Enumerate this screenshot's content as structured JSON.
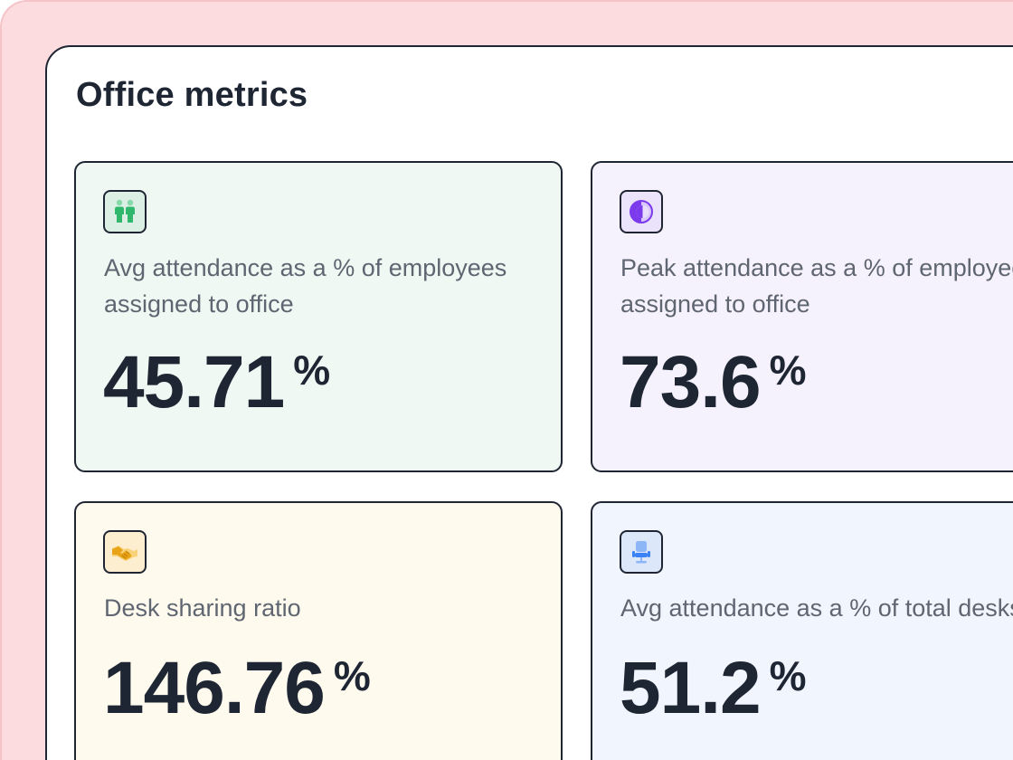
{
  "title": "Office metrics",
  "cards": [
    {
      "icon": "people-icon",
      "label": "Avg attendance as a % of employees assigned to office",
      "value": "45.71",
      "unit": "%",
      "background": "#eff8f3",
      "accent": "#2fb86b"
    },
    {
      "icon": "half-circle-icon",
      "label": "Peak attendance as a % of employees assigned to office",
      "value": "73.6",
      "unit": "%",
      "background": "#f5f1fd",
      "accent": "#7c3aed"
    },
    {
      "icon": "handshake-icon",
      "label": "Desk sharing ratio",
      "value": "146.76",
      "unit": "%",
      "background": "#fffaee",
      "accent": "#e8a317"
    },
    {
      "icon": "office-chair-icon",
      "label": "Avg attendance as a % of total desks",
      "value": "51.2",
      "unit": "%",
      "background": "#f1f5fe",
      "accent": "#3b82f6"
    }
  ]
}
